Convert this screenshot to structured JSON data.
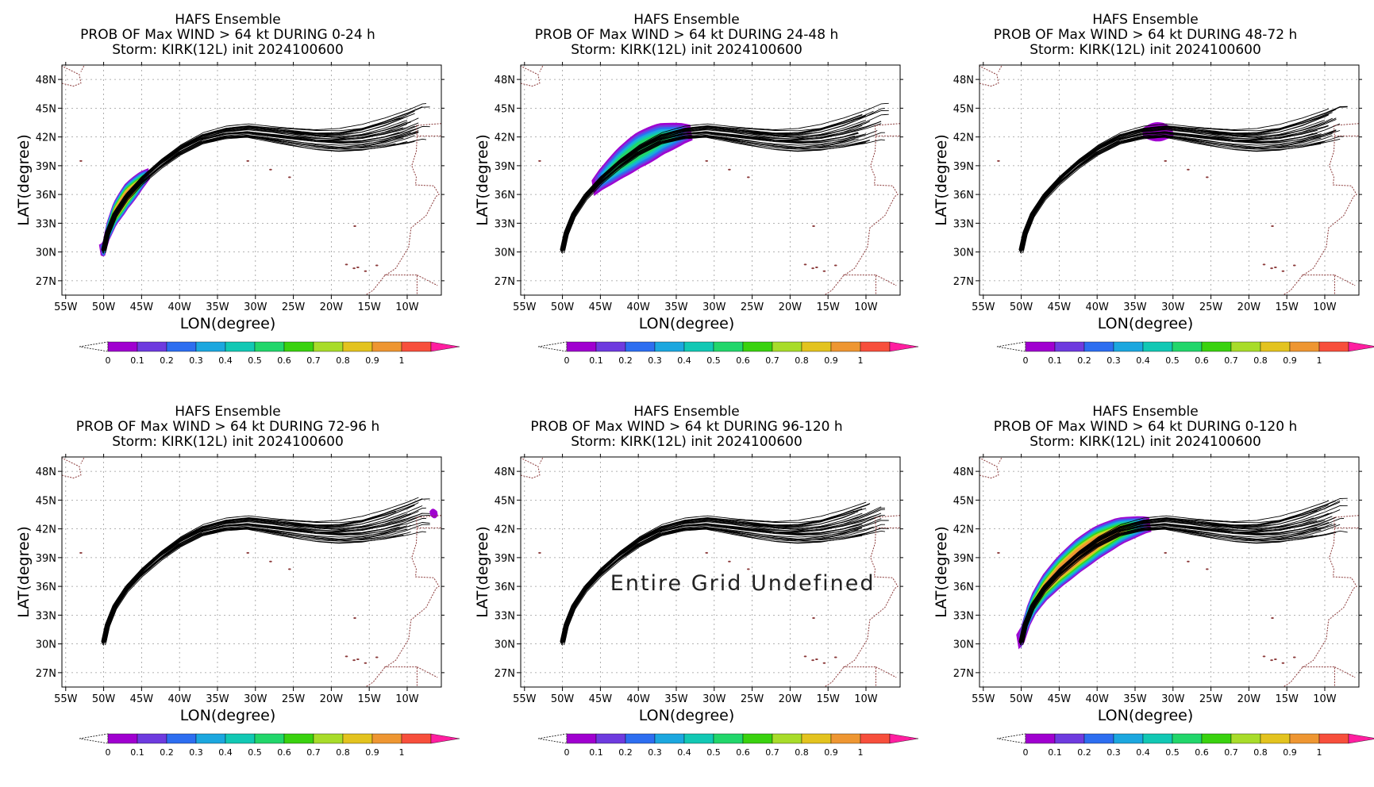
{
  "chart_data": [
    {
      "type": "heatmap",
      "title": "HAFS Ensemble",
      "subtitle": "PROB OF Max WIND > 64 kt DURING  0-24 h",
      "storm_line": "Storm: KIRK(12L) init 2024100600",
      "xlabel": "LON(degree)",
      "ylabel": "LAT(degree)",
      "xlim": [
        -55.5,
        -5.5
      ],
      "ylim": [
        25.5,
        49.5
      ],
      "lon_ticks": [
        "55W",
        "50W",
        "45W",
        "40W",
        "35W",
        "30W",
        "25W",
        "20W",
        "15W",
        "10W"
      ],
      "lat_ticks": [
        "27N",
        "30N",
        "33N",
        "36N",
        "39N",
        "42N",
        "45N",
        "48N"
      ],
      "grid": true,
      "prob_max": 1.0,
      "prob_lon_range": [
        -50.5,
        -44.0
      ],
      "prob_width_deg": 2.5,
      "undefined_text": ""
    },
    {
      "type": "heatmap",
      "title": "HAFS Ensemble",
      "subtitle": "PROB OF Max WIND > 64 kt DURING 24-48 h",
      "storm_line": "Storm: KIRK(12L) init 2024100600",
      "xlabel": "LON(degree)",
      "ylabel": "LAT(degree)",
      "xlim": [
        -55.5,
        -5.5
      ],
      "ylim": [
        25.5,
        49.5
      ],
      "lon_ticks": [
        "55W",
        "50W",
        "45W",
        "40W",
        "35W",
        "30W",
        "25W",
        "20W",
        "15W",
        "10W"
      ],
      "lat_ticks": [
        "27N",
        "30N",
        "33N",
        "36N",
        "39N",
        "42N",
        "45N",
        "48N"
      ],
      "grid": true,
      "prob_max": 0.6,
      "prob_lon_range": [
        -46.0,
        -33.0
      ],
      "prob_width_deg": 3.6,
      "undefined_text": ""
    },
    {
      "type": "heatmap",
      "title": "HAFS Ensemble",
      "subtitle": "PROB OF Max WIND > 64 kt DURING 48-72 h",
      "storm_line": "Storm: KIRK(12L) init 2024100600",
      "xlabel": "LON(degree)",
      "ylabel": "LAT(degree)",
      "xlim": [
        -55.5,
        -5.5
      ],
      "ylim": [
        25.5,
        49.5
      ],
      "lon_ticks": [
        "55W",
        "50W",
        "45W",
        "40W",
        "35W",
        "30W",
        "25W",
        "20W",
        "15W",
        "10W"
      ],
      "lat_ticks": [
        "27N",
        "30N",
        "33N",
        "36N",
        "39N",
        "42N",
        "45N",
        "48N"
      ],
      "grid": true,
      "prob_max": 0.1,
      "prob_lon_range": [
        -34.0,
        -30.0
      ],
      "prob_width_deg": 2.0,
      "undefined_text": ""
    },
    {
      "type": "heatmap",
      "title": "HAFS Ensemble",
      "subtitle": "PROB OF Max WIND > 64 kt DURING 72-96 h",
      "storm_line": "Storm: KIRK(12L) init 2024100600",
      "xlabel": "LON(degree)",
      "ylabel": "LAT(degree)",
      "xlim": [
        -55.5,
        -5.5
      ],
      "ylim": [
        25.5,
        49.5
      ],
      "lon_ticks": [
        "55W",
        "50W",
        "45W",
        "40W",
        "35W",
        "30W",
        "25W",
        "20W",
        "15W",
        "10W"
      ],
      "lat_ticks": [
        "27N",
        "30N",
        "33N",
        "36N",
        "39N",
        "42N",
        "45N",
        "48N"
      ],
      "grid": true,
      "prob_max": 0.1,
      "prob_lon_range": [
        -7.0,
        -6.0
      ],
      "prob_width_deg": 1.0,
      "undefined_text": ""
    },
    {
      "type": "heatmap",
      "title": "HAFS Ensemble",
      "subtitle": "PROB OF Max WIND > 64 kt DURING 96-120 h",
      "storm_line": "Storm: KIRK(12L) init 2024100600",
      "xlabel": "LON(degree)",
      "ylabel": "LAT(degree)",
      "xlim": [
        -55.5,
        -5.5
      ],
      "ylim": [
        25.5,
        49.5
      ],
      "lon_ticks": [
        "55W",
        "50W",
        "45W",
        "40W",
        "35W",
        "30W",
        "25W",
        "20W",
        "15W",
        "10W"
      ],
      "lat_ticks": [
        "27N",
        "30N",
        "33N",
        "36N",
        "39N",
        "42N",
        "45N",
        "48N"
      ],
      "grid": true,
      "prob_max": 0,
      "prob_lon_range": [
        0,
        0
      ],
      "prob_width_deg": 0,
      "undefined_text": "Entire Grid Undefined"
    },
    {
      "type": "heatmap",
      "title": "HAFS Ensemble",
      "subtitle": "PROB OF Max WIND > 64 kt DURING 0-120 h",
      "storm_line": "Storm: KIRK(12L) init 2024100600",
      "xlabel": "LON(degree)",
      "ylabel": "LAT(degree)",
      "xlim": [
        -55.5,
        -5.5
      ],
      "ylim": [
        25.5,
        49.5
      ],
      "lon_ticks": [
        "55W",
        "50W",
        "45W",
        "40W",
        "35W",
        "30W",
        "25W",
        "20W",
        "15W",
        "10W"
      ],
      "lat_ticks": [
        "27N",
        "30N",
        "33N",
        "36N",
        "39N",
        "42N",
        "45N",
        "48N"
      ],
      "grid": true,
      "prob_max": 1.0,
      "prob_lon_range": [
        -50.5,
        -33.0
      ],
      "prob_width_deg": 3.4,
      "undefined_text": ""
    }
  ],
  "track_center": [
    [
      -50,
      30.2
    ],
    [
      -49.5,
      32
    ],
    [
      -48.5,
      34
    ],
    [
      -47,
      35.8
    ],
    [
      -45,
      37.5
    ],
    [
      -42.5,
      39.2
    ],
    [
      -40,
      40.6
    ],
    [
      -37,
      41.8
    ],
    [
      -34,
      42.4
    ],
    [
      -31,
      42.6
    ],
    [
      -28,
      42.3
    ],
    [
      -25,
      42.0
    ],
    [
      -22,
      41.7
    ],
    [
      -19,
      41.6
    ],
    [
      -16,
      41.8
    ],
    [
      -13,
      42.3
    ],
    [
      -10,
      43.0
    ],
    [
      -8,
      43.6
    ]
  ],
  "track_count": 30,
  "colorbar": {
    "labels": [
      "0",
      "0.1",
      "0.2",
      "0.3",
      "0.4",
      "0.5",
      "0.6",
      "0.7",
      "0.8",
      "0.9",
      "1"
    ],
    "colors": [
      "#a000d0",
      "#6e3bdf",
      "#2d6ef0",
      "#1ca7df",
      "#12c8b4",
      "#22d66b",
      "#3ad20f",
      "#a8dc2a",
      "#e3c31f",
      "#ee9632",
      "#f74f3c"
    ],
    "over_color": "#ff1ea0"
  },
  "map_colors": {
    "coast": "#8b3a3a",
    "grid": "#9a9a9a",
    "track": "#000000"
  }
}
